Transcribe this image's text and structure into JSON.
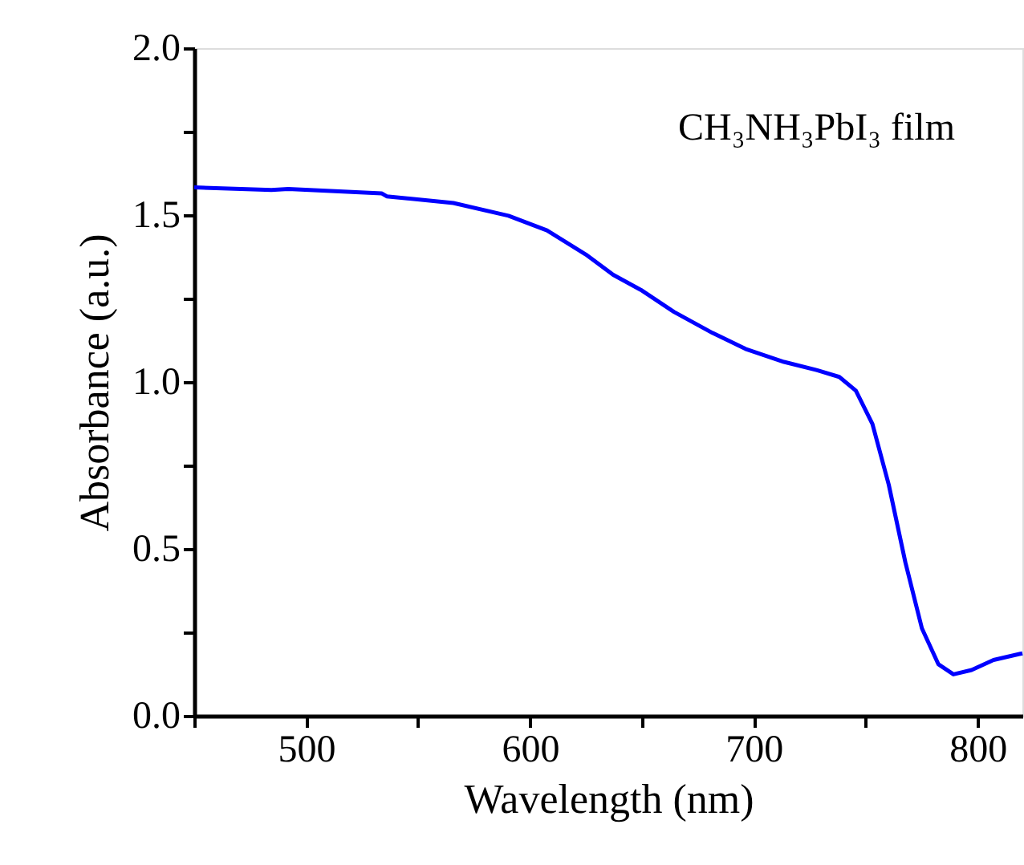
{
  "chart_data": {
    "type": "line",
    "xlabel": "Wavelength (nm)",
    "ylabel": "Absorbance (a.u.)",
    "annotations": [
      "CH₃NH₃PbI₃ film"
    ],
    "xlim": [
      450,
      820
    ],
    "ylim": [
      0.0,
      2.0
    ],
    "xticks": [
      {
        "value": 450,
        "label": null
      },
      500,
      {
        "value": 550,
        "label": null
      },
      600,
      {
        "value": 650,
        "label": null
      },
      700,
      {
        "value": 750,
        "label": null
      },
      800
    ],
    "yticks": [
      {
        "value": 0,
        "label": "0.0"
      },
      {
        "value": 0.25,
        "label": null
      },
      0.5,
      {
        "value": 0.75,
        "label": null
      },
      {
        "value": 1,
        "label": "1.0"
      },
      {
        "value": 1.25,
        "label": null
      },
      1.5,
      {
        "value": 1.75,
        "label": null
      },
      {
        "value": 2,
        "label": "2.0"
      }
    ],
    "grid": false,
    "legend": false,
    "marker": "none",
    "line_style": "solid",
    "series": [
      {
        "color": "#0000ff",
        "x": [
          450,
          484.5,
          492,
          533.7,
          536,
          565.8,
          590.4,
          607.6,
          624.9,
          637.2,
          649.5,
          664.3,
          681.5,
          696.3,
          713.5,
          728.3,
          738.2,
          745.6,
          753,
          760.3,
          767.7,
          775.1,
          782.5,
          789.2,
          797.3,
          807.1,
          820
        ],
        "values": [
          1.583,
          1.575,
          1.578,
          1.565,
          1.556,
          1.536,
          1.498,
          1.454,
          1.382,
          1.321,
          1.276,
          1.21,
          1.147,
          1.099,
          1.06,
          1.035,
          1.015,
          0.974,
          0.874,
          0.692,
          0.46,
          0.262,
          0.154,
          0.124,
          0.137,
          0.167,
          0.187
        ]
      }
    ]
  }
}
